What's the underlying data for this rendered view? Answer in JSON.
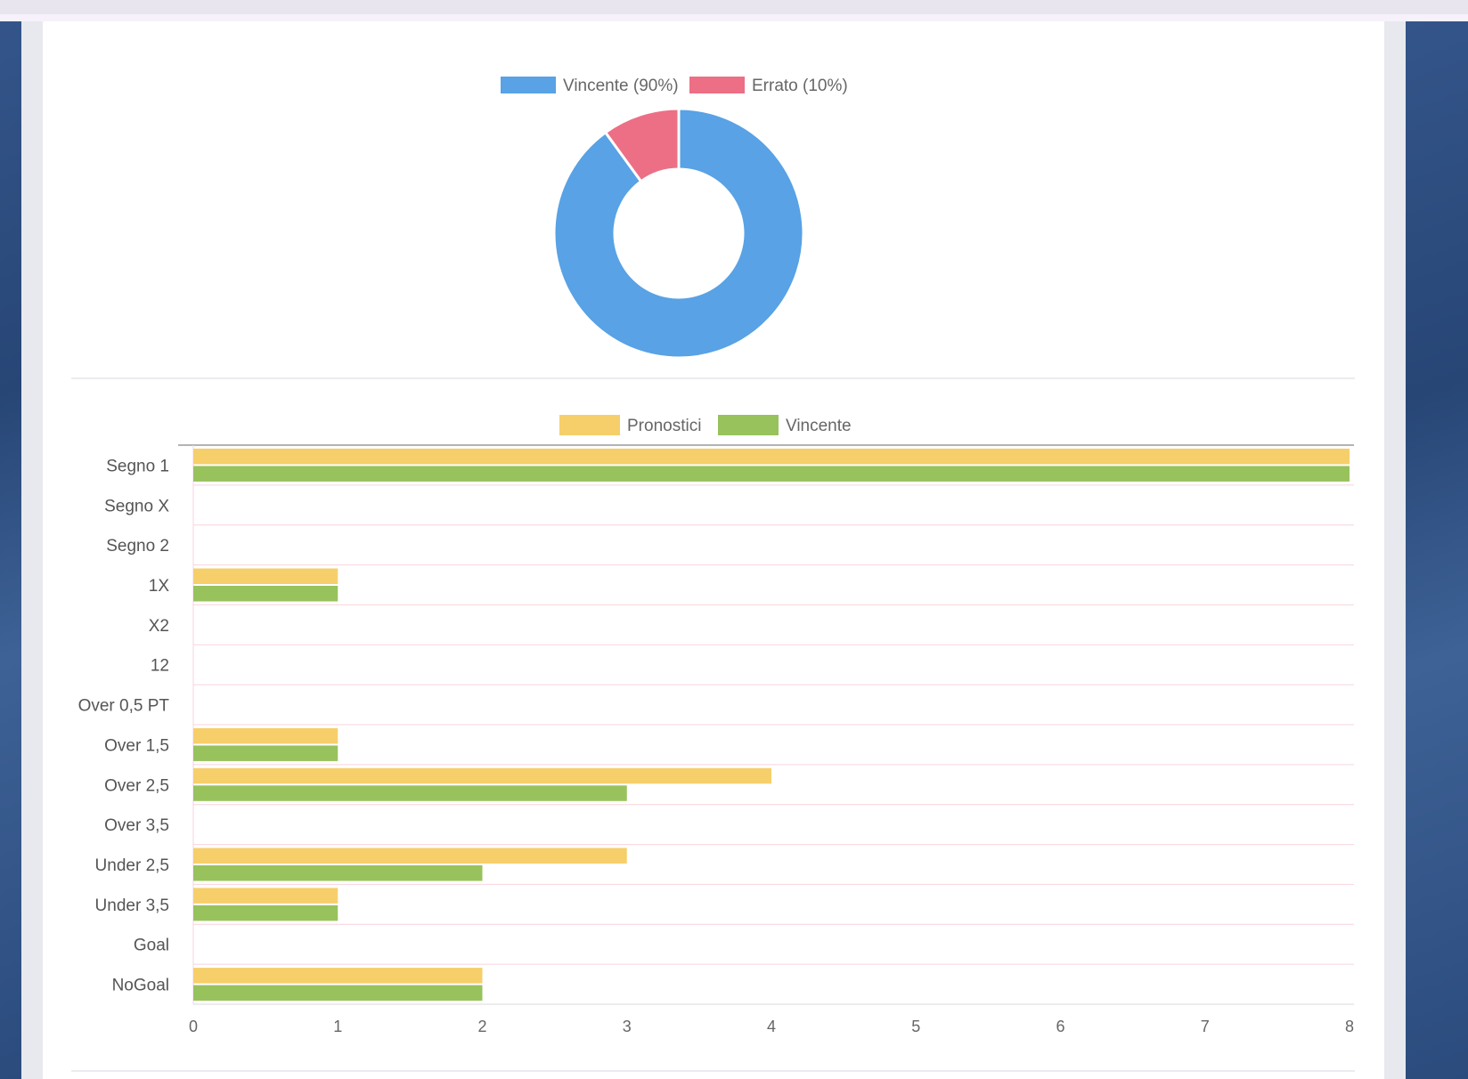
{
  "chart_data": [
    {
      "type": "pie",
      "variant": "doughnut",
      "labels": [
        "Vincente (90%)",
        "Errato (10%)"
      ],
      "values": [
        90,
        10
      ],
      "colors": [
        "#58a2e5",
        "#ec6f85"
      ],
      "legend_position": "top"
    },
    {
      "type": "bar",
      "orientation": "horizontal",
      "categories": [
        "Segno 1",
        "Segno X",
        "Segno 2",
        "1X",
        "X2",
        "12",
        "Over 0,5 PT",
        "Over 1,5",
        "Over 2,5",
        "Over 3,5",
        "Under 2,5",
        "Under 3,5",
        "Goal",
        "NoGoal"
      ],
      "series": [
        {
          "name": "Pronostici",
          "color": "#f6cf6b",
          "values": [
            8,
            0,
            0,
            1,
            0,
            0,
            0,
            1,
            4,
            0,
            3,
            1,
            0,
            2
          ]
        },
        {
          "name": "Vincente",
          "color": "#98c25c",
          "values": [
            8,
            0,
            0,
            1,
            0,
            0,
            0,
            1,
            3,
            0,
            2,
            1,
            0,
            2
          ]
        }
      ],
      "xlim": [
        0,
        8
      ],
      "xticks": [
        "0",
        "1",
        "2",
        "3",
        "4",
        "5",
        "6",
        "7",
        "8"
      ],
      "grid": true,
      "legend_position": "top"
    }
  ]
}
